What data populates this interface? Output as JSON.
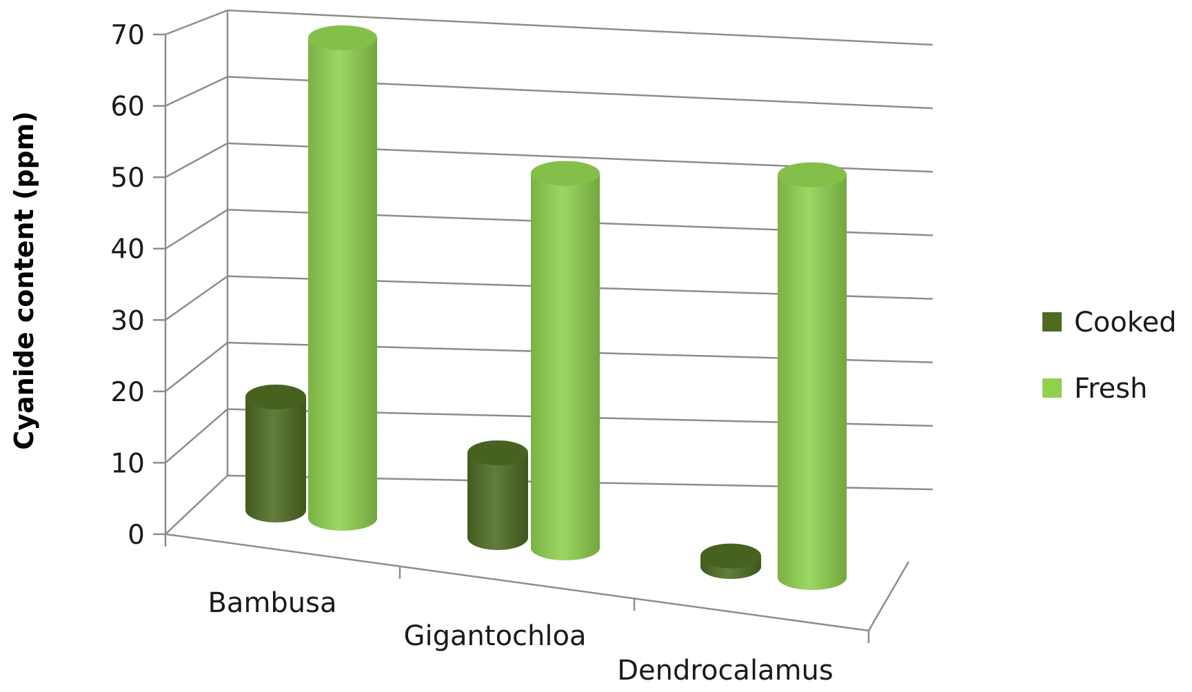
{
  "chart_data": {
    "type": "bar",
    "style": "3d-cylinder",
    "categories": [
      "Bambusa",
      "Gigantochloa",
      "Dendrocalamus"
    ],
    "series": [
      {
        "name": "Cooked",
        "values": [
          16,
          12,
          1.5
        ],
        "color": "#4d6b22"
      },
      {
        "name": "Fresh",
        "values": [
          68,
          53,
          57
        ],
        "color": "#8fd14f"
      }
    ],
    "title": "",
    "xlabel": "",
    "ylabel": "Cyanide content (ppm)",
    "ylim": [
      0,
      70
    ],
    "yticks": [
      0,
      10,
      20,
      30,
      40,
      50,
      60,
      70
    ],
    "grid": true,
    "legend_position": "right"
  }
}
